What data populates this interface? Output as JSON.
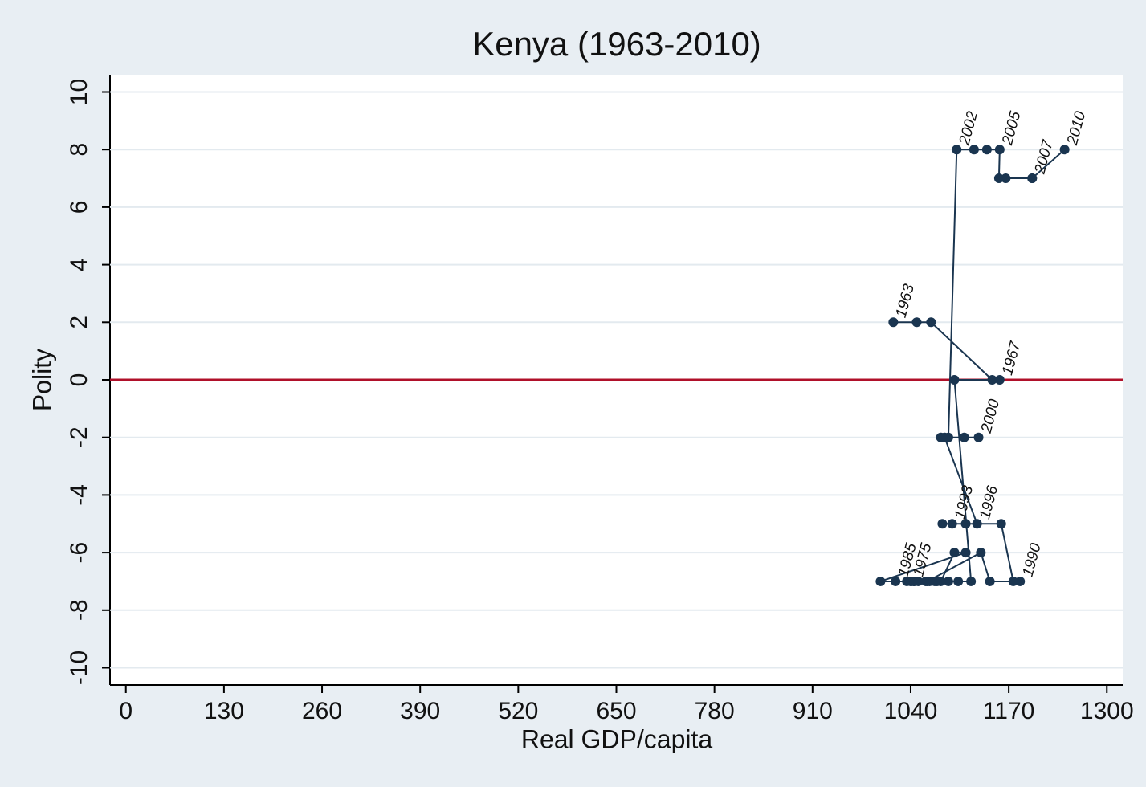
{
  "chart_data": {
    "type": "connected-scatter",
    "title": "Kenya (1963-2010)",
    "x_label": "Real GDP/capita",
    "y_label": "Polity",
    "xlim": [
      -21,
      1321
    ],
    "ylim": [
      -10.6,
      10.6
    ],
    "xticks": [
      0,
      130,
      260,
      390,
      520,
      650,
      780,
      910,
      1040,
      1170,
      1300
    ],
    "yticks": [
      10,
      8,
      6,
      4,
      2,
      0,
      -2,
      -4,
      -6,
      -8,
      -10
    ],
    "grid": true,
    "hline": 0,
    "hline_color": "#b0102a",
    "series": [
      {
        "color": "#1a3550",
        "x": [
          1017,
          1048,
          1067,
          1148,
          1158,
          1098,
          1120,
          1103,
          1090,
          1075,
          1065,
          1045,
          1040,
          1044,
          1041,
          1050,
          1060,
          1072,
          1080,
          1098,
          1113,
          1000,
          1020,
          1035,
          1062,
          1133,
          1145,
          1185,
          1176,
          1160,
          1095,
          1082,
          1113,
          1128,
          1085,
          1080,
          1111,
          1130,
          1090,
          1101,
          1124,
          1141,
          1158,
          1157,
          1201,
          1166,
          1201,
          1244
        ],
        "values": [
          2,
          2,
          2,
          0,
          0,
          0,
          -7,
          -7,
          -7,
          -7,
          -7,
          -7,
          -7,
          -7,
          -7,
          -7,
          -7,
          -7,
          -7,
          -6,
          -6,
          -7,
          -7,
          -7,
          -7,
          -6,
          -7,
          -7,
          -7,
          -5,
          -5,
          -5,
          -5,
          -5,
          -2,
          -2,
          -2,
          -2,
          -2,
          8,
          8,
          8,
          8,
          7,
          7,
          7,
          7,
          8
        ],
        "point_labels": [
          "1963",
          null,
          null,
          null,
          "1967",
          null,
          null,
          null,
          null,
          null,
          null,
          null,
          "1975",
          null,
          null,
          null,
          null,
          null,
          null,
          null,
          null,
          null,
          "1985",
          null,
          null,
          null,
          null,
          "1990",
          null,
          null,
          "1993",
          null,
          null,
          "1996",
          null,
          null,
          null,
          "2000",
          null,
          "2002",
          null,
          null,
          "2005",
          null,
          "2007",
          null,
          null,
          "2010"
        ]
      }
    ]
  }
}
